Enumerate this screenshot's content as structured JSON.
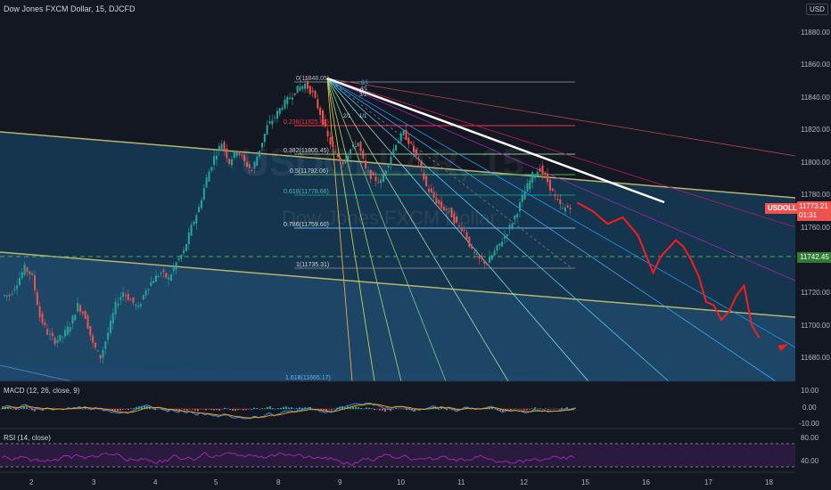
{
  "header": {
    "symbol_title": "Dow Jones FXCM Dollar, 15, DJCFD",
    "currency_badge": "USD"
  },
  "watermark": {
    "ticker": "USDOLLAR, 15",
    "name": "Dow Jones FXCM Dollar"
  },
  "price_axis": {
    "ticks": [
      "11880.00",
      "11860.00",
      "11840.00",
      "11820.00",
      "11800.00",
      "11780.00",
      "11760.00",
      "11720.00",
      "11700.00",
      "11680.00"
    ],
    "last_price_label": "USDOLLAR",
    "last_price": "11773.21",
    "countdown": "01:31",
    "hline_price": "11742.45"
  },
  "time_axis": {
    "ticks": [
      "2",
      "3",
      "4",
      "5",
      "8",
      "9",
      "10",
      "11",
      "12",
      "15",
      "16",
      "17",
      "18"
    ]
  },
  "fib_labels": [
    {
      "text": "0(11848.05)"
    },
    {
      "text": "0.236(11825.42)"
    },
    {
      "text": "0.382(11805.45)"
    },
    {
      "text": "0.5(11792.06)"
    },
    {
      "text": "0.618(11778.66)"
    },
    {
      "text": "0.786(11759.60)"
    },
    {
      "text": "1(11735.31)"
    },
    {
      "text": "1.618(11665.17)"
    }
  ],
  "fan_labels": [
    "8/1",
    "4/1",
    "3/1",
    "2/1",
    "1/1"
  ],
  "macd": {
    "title": "MACD (12, 26, close, 9)",
    "ticks": [
      "10.00",
      "0.00",
      "-10.00"
    ]
  },
  "rsi": {
    "title": "RSI (14, close)",
    "ticks": [
      "80.00",
      "40.00"
    ]
  },
  "colors": {
    "background": "#131722",
    "channel_fill": "#1e4a6e",
    "channel_line": "#b8b46a",
    "bull": "#26a69a",
    "bear": "#ef5350",
    "forecast": "#ff1a1a",
    "trendline": "#ffffff",
    "hline": "#4caf50",
    "macd_line": "#2196f3",
    "signal_line": "#ff9800",
    "rsi_line": "#9c27b0"
  },
  "chart_data": {
    "type": "candlestick",
    "title": "Dow Jones FXCM Dollar, 15, DJCFD",
    "ylim": [
      11670,
      11895
    ],
    "key_prices": {
      "fib_0": 11848.05,
      "fib_0236": 11825.42,
      "fib_0382": 11805.45,
      "fib_05": 11792.06,
      "fib_0618": 11778.66,
      "fib_0786": 11759.6,
      "fib_1": 11735.31,
      "fib_1618": 11665.17,
      "last": 11773.21,
      "horizontal_level": 11742.45
    },
    "price_path": [
      [
        0,
        11718
      ],
      [
        1,
        11726
      ],
      [
        2,
        11735
      ],
      [
        3,
        11730
      ],
      [
        4,
        11705
      ],
      [
        5,
        11695
      ],
      [
        6,
        11690
      ],
      [
        7,
        11693
      ],
      [
        8,
        11700
      ],
      [
        9,
        11712
      ],
      [
        10,
        11705
      ],
      [
        11,
        11688
      ],
      [
        12,
        11680
      ],
      [
        13,
        11695
      ],
      [
        14,
        11712
      ],
      [
        15,
        11720
      ],
      [
        16,
        11715
      ],
      [
        17,
        11710
      ],
      [
        18,
        11722
      ],
      [
        19,
        11728
      ],
      [
        20,
        11732
      ],
      [
        21,
        11728
      ],
      [
        22,
        11738
      ],
      [
        23,
        11745
      ],
      [
        24,
        11760
      ],
      [
        25,
        11772
      ],
      [
        26,
        11790
      ],
      [
        27,
        11803
      ],
      [
        28,
        11812
      ],
      [
        29,
        11800
      ],
      [
        30,
        11808
      ],
      [
        31,
        11800
      ],
      [
        32,
        11795
      ],
      [
        33,
        11808
      ],
      [
        34,
        11822
      ],
      [
        35,
        11828
      ],
      [
        36,
        11835
      ],
      [
        37,
        11840
      ],
      [
        38,
        11845
      ],
      [
        39,
        11848
      ],
      [
        40,
        11842
      ],
      [
        41,
        11830
      ],
      [
        42,
        11815
      ],
      [
        43,
        11805
      ],
      [
        44,
        11800
      ],
      [
        45,
        11808
      ],
      [
        46,
        11812
      ],
      [
        47,
        11795
      ],
      [
        48,
        11790
      ],
      [
        49,
        11788
      ],
      [
        50,
        11800
      ],
      [
        51,
        11812
      ],
      [
        52,
        11818
      ],
      [
        53,
        11810
      ],
      [
        54,
        11800
      ],
      [
        55,
        11785
      ],
      [
        56,
        11778
      ],
      [
        57,
        11772
      ],
      [
        58,
        11770
      ],
      [
        59,
        11762
      ],
      [
        60,
        11758
      ],
      [
        61,
        11745
      ],
      [
        62,
        11740
      ],
      [
        63,
        11738
      ],
      [
        64,
        11745
      ],
      [
        65,
        11752
      ],
      [
        66,
        11760
      ],
      [
        67,
        11770
      ],
      [
        68,
        11782
      ],
      [
        69,
        11792
      ],
      [
        70,
        11796
      ],
      [
        71,
        11788
      ],
      [
        72,
        11778
      ],
      [
        73,
        11771
      ],
      [
        74,
        11773
      ]
    ],
    "forecast_path": [
      [
        75,
        11775
      ],
      [
        77,
        11770
      ],
      [
        79,
        11762
      ],
      [
        81,
        11766
      ],
      [
        83,
        11755
      ],
      [
        85,
        11732
      ],
      [
        86,
        11742
      ],
      [
        88,
        11752
      ],
      [
        89,
        11748
      ],
      [
        90,
        11740
      ],
      [
        91,
        11730
      ],
      [
        92,
        11714
      ],
      [
        93,
        11712
      ],
      [
        94,
        11703
      ],
      [
        95,
        11708
      ],
      [
        96,
        11718
      ],
      [
        97,
        11724
      ],
      [
        98,
        11700
      ],
      [
        99,
        11692
      ]
    ]
  }
}
